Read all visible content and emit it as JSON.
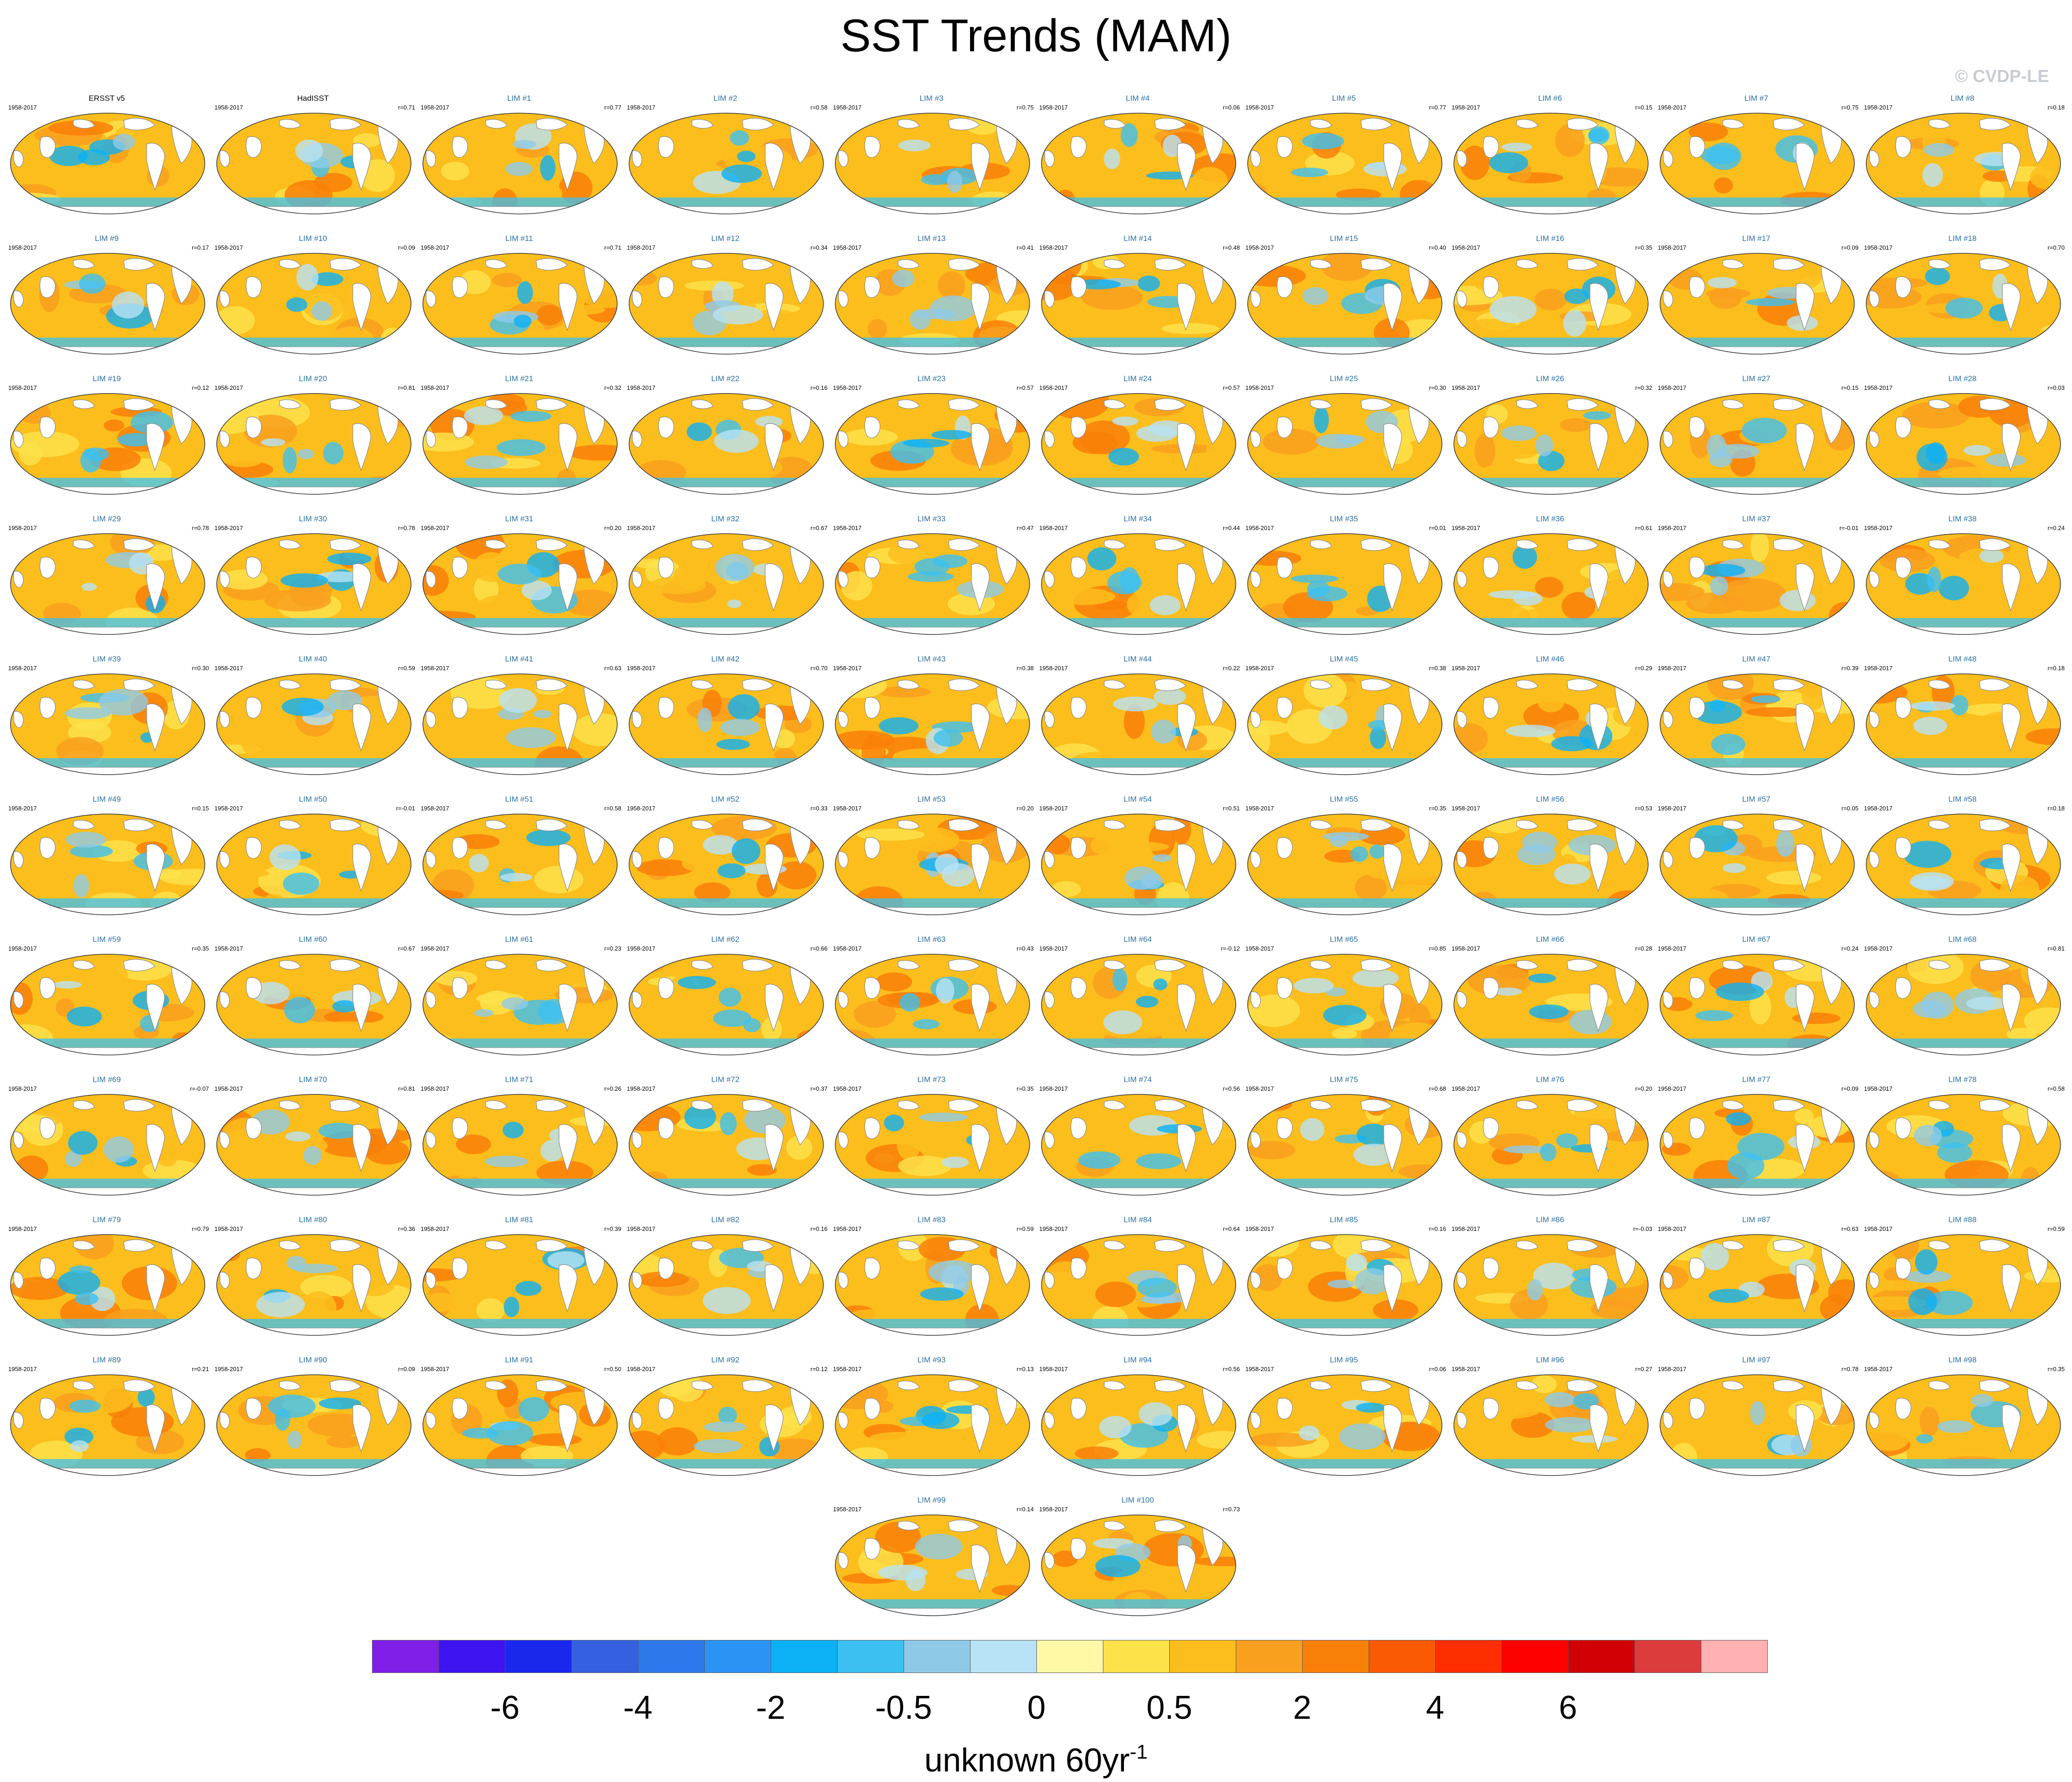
{
  "title": "SST Trends (MAM)",
  "copyright": "© CVDP-LE",
  "chart_data": {
    "type": "heatmap",
    "title": "SST Trends (MAM)",
    "projection": "global map panels",
    "period": "1958-2017",
    "panels": [
      {
        "label": "ERSST v5",
        "years": "1958-2017",
        "r": ""
      },
      {
        "label": "HadISST",
        "years": "1958-2017",
        "r": "r=0.71"
      },
      {
        "label": "LIM #1",
        "years": "1958-2017",
        "r": "r=0.77"
      },
      {
        "label": "LIM #2",
        "years": "1958-2017",
        "r": "r=0.58"
      },
      {
        "label": "LIM #3",
        "years": "1958-2017",
        "r": "r=0.75"
      },
      {
        "label": "LIM #4",
        "years": "1958-2017",
        "r": "r=0.06"
      },
      {
        "label": "LIM #5",
        "years": "1958-2017",
        "r": "r=0.77"
      },
      {
        "label": "LIM #6",
        "years": "1958-2017",
        "r": "r=0.15"
      },
      {
        "label": "LIM #7",
        "years": "1958-2017",
        "r": "r=0.75"
      },
      {
        "label": "LIM #8",
        "years": "1958-2017",
        "r": "r=0.18"
      },
      {
        "label": "LIM #9",
        "years": "1958-2017",
        "r": "r=0.17"
      },
      {
        "label": "LIM #10",
        "years": "1958-2017",
        "r": "r=0.09"
      },
      {
        "label": "LIM #11",
        "years": "1958-2017",
        "r": "r=0.71"
      },
      {
        "label": "LIM #12",
        "years": "1958-2017",
        "r": "r=0.34"
      },
      {
        "label": "LIM #13",
        "years": "1958-2017",
        "r": "r=0.41"
      },
      {
        "label": "LIM #14",
        "years": "1958-2017",
        "r": "r=0.48"
      },
      {
        "label": "LIM #15",
        "years": "1958-2017",
        "r": "r=0.40"
      },
      {
        "label": "LIM #16",
        "years": "1958-2017",
        "r": "r=0.35"
      },
      {
        "label": "LIM #17",
        "years": "1958-2017",
        "r": "r=0.09"
      },
      {
        "label": "LIM #18",
        "years": "1958-2017",
        "r": "r=0.70"
      },
      {
        "label": "LIM #19",
        "years": "1958-2017",
        "r": "r=0.12"
      },
      {
        "label": "LIM #20",
        "years": "1958-2017",
        "r": "r=0.81"
      },
      {
        "label": "LIM #21",
        "years": "1958-2017",
        "r": "r=0.32"
      },
      {
        "label": "LIM #22",
        "years": "1958-2017",
        "r": "r=0.16"
      },
      {
        "label": "LIM #23",
        "years": "1958-2017",
        "r": "r=0.57"
      },
      {
        "label": "LIM #24",
        "years": "1958-2017",
        "r": "r=0.57"
      },
      {
        "label": "LIM #25",
        "years": "1958-2017",
        "r": "r=0.30"
      },
      {
        "label": "LIM #26",
        "years": "1958-2017",
        "r": "r=0.32"
      },
      {
        "label": "LIM #27",
        "years": "1958-2017",
        "r": "r=0.15"
      },
      {
        "label": "LIM #28",
        "years": "1958-2017",
        "r": "r=0.03"
      },
      {
        "label": "LIM #29",
        "years": "1958-2017",
        "r": "r=0.78"
      },
      {
        "label": "LIM #30",
        "years": "1958-2017",
        "r": "r=0.78"
      },
      {
        "label": "LIM #31",
        "years": "1958-2017",
        "r": "r=0.20"
      },
      {
        "label": "LIM #32",
        "years": "1958-2017",
        "r": "r=0.67"
      },
      {
        "label": "LIM #33",
        "years": "1958-2017",
        "r": "r=0.47"
      },
      {
        "label": "LIM #34",
        "years": "1958-2017",
        "r": "r=0.44"
      },
      {
        "label": "LIM #35",
        "years": "1958-2017",
        "r": "r=0.01"
      },
      {
        "label": "LIM #36",
        "years": "1958-2017",
        "r": "r=0.61"
      },
      {
        "label": "LIM #37",
        "years": "1958-2017",
        "r": "r=-0.01"
      },
      {
        "label": "LIM #38",
        "years": "1958-2017",
        "r": "r=0.24"
      },
      {
        "label": "LIM #39",
        "years": "1958-2017",
        "r": "r=0.30"
      },
      {
        "label": "LIM #40",
        "years": "1958-2017",
        "r": "r=0.59"
      },
      {
        "label": "LIM #41",
        "years": "1958-2017",
        "r": "r=0.63"
      },
      {
        "label": "LIM #42",
        "years": "1958-2017",
        "r": "r=0.70"
      },
      {
        "label": "LIM #43",
        "years": "1958-2017",
        "r": "r=0.38"
      },
      {
        "label": "LIM #44",
        "years": "1958-2017",
        "r": "r=0.22"
      },
      {
        "label": "LIM #45",
        "years": "1958-2017",
        "r": "r=0.38"
      },
      {
        "label": "LIM #46",
        "years": "1958-2017",
        "r": "r=0.29"
      },
      {
        "label": "LIM #47",
        "years": "1958-2017",
        "r": "r=0.39"
      },
      {
        "label": "LIM #48",
        "years": "1958-2017",
        "r": "r=0.18"
      },
      {
        "label": "LIM #49",
        "years": "1958-2017",
        "r": "r=0.15"
      },
      {
        "label": "LIM #50",
        "years": "1958-2017",
        "r": "r=-0.01"
      },
      {
        "label": "LIM #51",
        "years": "1958-2017",
        "r": "r=0.58"
      },
      {
        "label": "LIM #52",
        "years": "1958-2017",
        "r": "r=0.33"
      },
      {
        "label": "LIM #53",
        "years": "1958-2017",
        "r": "r=0.20"
      },
      {
        "label": "LIM #54",
        "years": "1958-2017",
        "r": "r=0.51"
      },
      {
        "label": "LIM #55",
        "years": "1958-2017",
        "r": "r=0.35"
      },
      {
        "label": "LIM #56",
        "years": "1958-2017",
        "r": "r=0.53"
      },
      {
        "label": "LIM #57",
        "years": "1958-2017",
        "r": "r=0.05"
      },
      {
        "label": "LIM #58",
        "years": "1958-2017",
        "r": "r=0.18"
      },
      {
        "label": "LIM #59",
        "years": "1958-2017",
        "r": "r=0.35"
      },
      {
        "label": "LIM #60",
        "years": "1958-2017",
        "r": "r=0.67"
      },
      {
        "label": "LIM #61",
        "years": "1958-2017",
        "r": "r=0.23"
      },
      {
        "label": "LIM #62",
        "years": "1958-2017",
        "r": "r=0.66"
      },
      {
        "label": "LIM #63",
        "years": "1958-2017",
        "r": "r=0.43"
      },
      {
        "label": "LIM #64",
        "years": "1958-2017",
        "r": "r=-0.12"
      },
      {
        "label": "LIM #65",
        "years": "1958-2017",
        "r": "r=0.85"
      },
      {
        "label": "LIM #66",
        "years": "1958-2017",
        "r": "r=0.28"
      },
      {
        "label": "LIM #67",
        "years": "1958-2017",
        "r": "r=0.24"
      },
      {
        "label": "LIM #68",
        "years": "1958-2017",
        "r": "r=0.81"
      },
      {
        "label": "LIM #69",
        "years": "1958-2017",
        "r": "r=-0.07"
      },
      {
        "label": "LIM #70",
        "years": "1958-2017",
        "r": "r=0.81"
      },
      {
        "label": "LIM #71",
        "years": "1958-2017",
        "r": "r=0.26"
      },
      {
        "label": "LIM #72",
        "years": "1958-2017",
        "r": "r=0.37"
      },
      {
        "label": "LIM #73",
        "years": "1958-2017",
        "r": "r=0.35"
      },
      {
        "label": "LIM #74",
        "years": "1958-2017",
        "r": "r=0.56"
      },
      {
        "label": "LIM #75",
        "years": "1958-2017",
        "r": "r=0.68"
      },
      {
        "label": "LIM #76",
        "years": "1958-2017",
        "r": "r=0.20"
      },
      {
        "label": "LIM #77",
        "years": "1958-2017",
        "r": "r=0.09"
      },
      {
        "label": "LIM #78",
        "years": "1958-2017",
        "r": "r=0.58"
      },
      {
        "label": "LIM #79",
        "years": "1958-2017",
        "r": "r=0.79"
      },
      {
        "label": "LIM #80",
        "years": "1958-2017",
        "r": "r=0.36"
      },
      {
        "label": "LIM #81",
        "years": "1958-2017",
        "r": "r=0.39"
      },
      {
        "label": "LIM #82",
        "years": "1958-2017",
        "r": "r=0.16"
      },
      {
        "label": "LIM #83",
        "years": "1958-2017",
        "r": "r=0.59"
      },
      {
        "label": "LIM #84",
        "years": "1958-2017",
        "r": "r=0.64"
      },
      {
        "label": "LIM #85",
        "years": "1958-2017",
        "r": "r=0.16"
      },
      {
        "label": "LIM #86",
        "years": "1958-2017",
        "r": "r=-0.03"
      },
      {
        "label": "LIM #87",
        "years": "1958-2017",
        "r": "r=0.63"
      },
      {
        "label": "LIM #88",
        "years": "1958-2017",
        "r": "r=0.59"
      },
      {
        "label": "LIM #89",
        "years": "1958-2017",
        "r": "r=0.21"
      },
      {
        "label": "LIM #90",
        "years": "1958-2017",
        "r": "r=0.09"
      },
      {
        "label": "LIM #91",
        "years": "1958-2017",
        "r": "r=0.50"
      },
      {
        "label": "LIM #92",
        "years": "1958-2017",
        "r": "r=0.12"
      },
      {
        "label": "LIM #93",
        "years": "1958-2017",
        "r": "r=0.13"
      },
      {
        "label": "LIM #94",
        "years": "1958-2017",
        "r": "r=0.56"
      },
      {
        "label": "LIM #95",
        "years": "1958-2017",
        "r": "r=0.06"
      },
      {
        "label": "LIM #96",
        "years": "1958-2017",
        "r": "r=0.27"
      },
      {
        "label": "LIM #97",
        "years": "1958-2017",
        "r": "r=0.78"
      },
      {
        "label": "LIM #98",
        "years": "1958-2017",
        "r": "r=0.35"
      },
      {
        "label": "LIM #99",
        "years": "1958-2017",
        "r": "r=0.14"
      },
      {
        "label": "LIM #100",
        "years": "1958-2017",
        "r": "r=0.73"
      }
    ],
    "colorbar": {
      "colors": [
        "#7f1fe8",
        "#3e14f0",
        "#1a28ee",
        "#3660e0",
        "#2c78ea",
        "#2a94f5",
        "#0cb0f5",
        "#3cc0f2",
        "#8ecae8",
        "#b8e2f5",
        "#fff8a6",
        "#fde24a",
        "#fcbe1c",
        "#f9a01e",
        "#f98008",
        "#fb5a04",
        "#fe2e00",
        "#fd0000",
        "#d10004",
        "#dc3c3c",
        "#ffb0b0"
      ],
      "tick_labels": [
        "-6",
        "-4",
        "-2",
        "-0.5",
        "0",
        "0.5",
        "2",
        "4",
        "6"
      ],
      "label": "unknown 60yr",
      "label_exponent": "-1"
    }
  }
}
